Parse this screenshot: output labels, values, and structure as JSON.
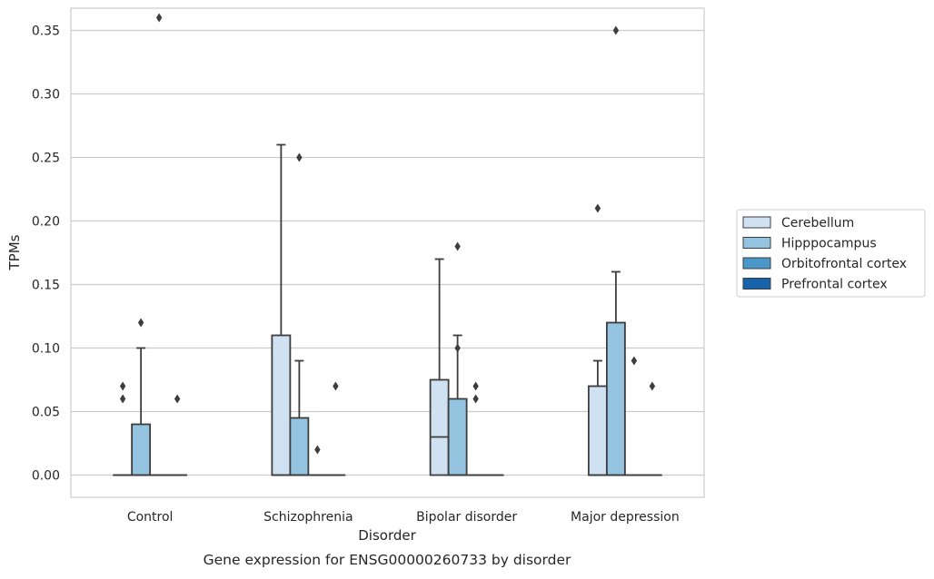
{
  "chart_data": {
    "type": "box",
    "title": "",
    "caption": "Gene expression for ENSG00000260733 by disorder",
    "xlabel": "Disorder",
    "ylabel": "TPMs",
    "categories": [
      "Control",
      "Schizophrenia",
      "Bipolar disorder",
      "Major depression"
    ],
    "ylim": [
      -0.0175,
      0.3675
    ],
    "yticks": [
      0.0,
      0.05,
      0.1,
      0.15,
      0.2,
      0.25,
      0.3,
      0.35
    ],
    "ytick_labels": [
      "0.00",
      "0.05",
      "0.10",
      "0.15",
      "0.20",
      "0.25",
      "0.30",
      "0.35"
    ],
    "grid": "horizontal",
    "legend_position": "right",
    "series": [
      {
        "name": "Cerebellum",
        "color": "#d0e1f2",
        "boxes": [
          {
            "min": 0,
            "q1": 0,
            "median": 0,
            "q3": 0,
            "max": 0,
            "outliers": [
              0.06,
              0.07
            ]
          },
          {
            "min": 0,
            "q1": 0,
            "median": 0,
            "q3": 0.11,
            "max": 0.26,
            "outliers": []
          },
          {
            "min": 0,
            "q1": 0,
            "median": 0.03,
            "q3": 0.075,
            "max": 0.17,
            "outliers": []
          },
          {
            "min": 0,
            "q1": 0,
            "median": 0,
            "q3": 0.07,
            "max": 0.09,
            "outliers": [
              0.21
            ]
          }
        ]
      },
      {
        "name": "Hipppocampus",
        "color": "#94c4df",
        "boxes": [
          {
            "min": 0,
            "q1": 0,
            "median": 0,
            "q3": 0.04,
            "max": 0.1,
            "outliers": [
              0.12
            ]
          },
          {
            "min": 0,
            "q1": 0,
            "median": 0,
            "q3": 0.045,
            "max": 0.09,
            "outliers": [
              0.25
            ]
          },
          {
            "min": 0,
            "q1": 0,
            "median": 0,
            "q3": 0.06,
            "max": 0.11,
            "outliers": [
              0.18,
              0.1
            ]
          },
          {
            "min": 0,
            "q1": 0,
            "median": 0,
            "q3": 0.12,
            "max": 0.16,
            "outliers": [
              0.35
            ]
          }
        ]
      },
      {
        "name": "Orbitofrontal cortex",
        "color": "#4a98c9",
        "boxes": [
          {
            "min": 0,
            "q1": 0,
            "median": 0,
            "q3": 0,
            "max": 0,
            "outliers": [
              0.36
            ]
          },
          {
            "min": 0,
            "q1": 0,
            "median": 0,
            "q3": 0,
            "max": 0,
            "outliers": [
              0.02
            ]
          },
          {
            "min": 0,
            "q1": 0,
            "median": 0,
            "q3": 0,
            "max": 0,
            "outliers": [
              0.07,
              0.06
            ]
          },
          {
            "min": 0,
            "q1": 0,
            "median": 0,
            "q3": 0,
            "max": 0,
            "outliers": [
              0.09
            ]
          }
        ]
      },
      {
        "name": "Prefrontal cortex",
        "color": "#1764ab",
        "boxes": [
          {
            "min": 0,
            "q1": 0,
            "median": 0,
            "q3": 0,
            "max": 0,
            "outliers": [
              0.06
            ]
          },
          {
            "min": 0,
            "q1": 0,
            "median": 0,
            "q3": 0,
            "max": 0,
            "outliers": [
              0.07
            ]
          },
          {
            "min": 0,
            "q1": 0,
            "median": 0,
            "q3": 0,
            "max": 0,
            "outliers": []
          },
          {
            "min": 0,
            "q1": 0,
            "median": 0,
            "q3": 0,
            "max": 0,
            "outliers": [
              0.07
            ]
          }
        ]
      }
    ]
  }
}
